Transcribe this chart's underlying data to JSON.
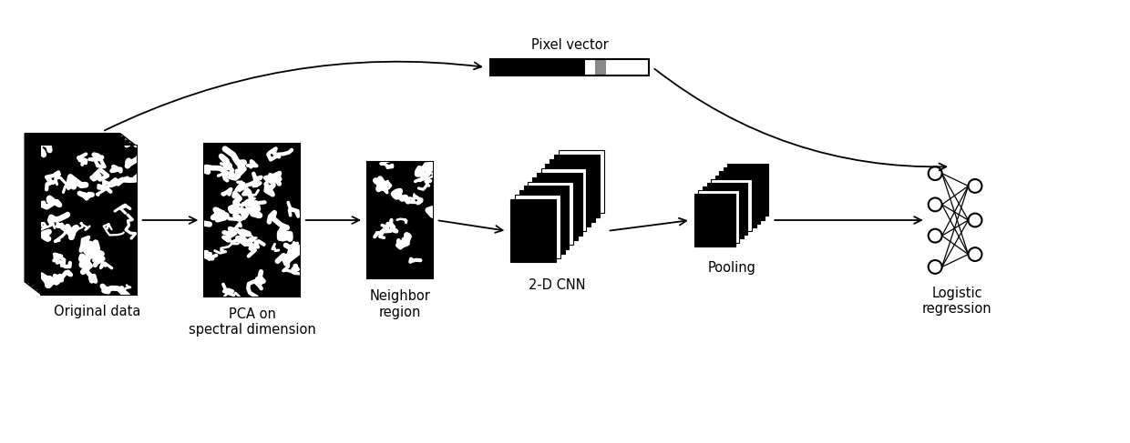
{
  "bg_color": "#ffffff",
  "text_color": "#000000",
  "labels": {
    "original_data": "Original data",
    "pca": "PCA on\nspectral dimension",
    "neighbor": "Neighbor\nregion",
    "cnn": "2-D CNN",
    "pooling": "Pooling",
    "logistic": "Logistic\nregression",
    "pixel_vector": "Pixel vector"
  },
  "label_fontsize": 10.5,
  "figsize": [
    12.4,
    4.87
  ],
  "dpi": 100
}
